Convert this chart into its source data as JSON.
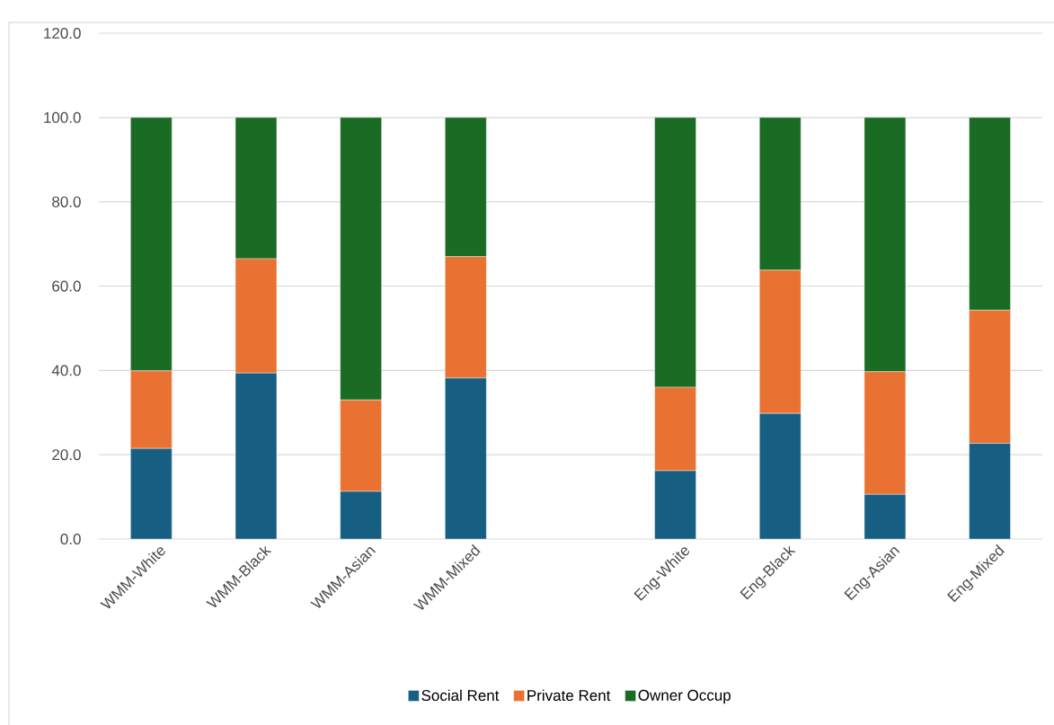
{
  "chart_data": {
    "type": "bar",
    "stacked": true,
    "categories": [
      "WMM-White",
      "WMM-Black",
      "WMM-Asian",
      "WMM-Mixed",
      null,
      "Eng-White",
      "Eng-Black",
      "Eng-Asian",
      "Eng-Mixed"
    ],
    "series": [
      {
        "name": "Social Rent",
        "color": "#175f82",
        "values": [
          21.5,
          39.4,
          11.3,
          38.2,
          null,
          16.2,
          29.8,
          10.6,
          22.7
        ]
      },
      {
        "name": "Private Rent",
        "color": "#e97132",
        "values": [
          18.4,
          27.1,
          21.7,
          28.8,
          null,
          19.8,
          34.0,
          29.1,
          31.6
        ]
      },
      {
        "name": "Owner Occup",
        "color": "#1a6b24",
        "values": [
          60.1,
          33.5,
          67.0,
          33.0,
          null,
          64.0,
          36.2,
          60.3,
          45.7
        ]
      }
    ],
    "ylim": [
      0,
      120
    ],
    "yticks": [
      {
        "value": 0,
        "label": "0.0"
      },
      {
        "value": 20,
        "label": "20.0"
      },
      {
        "value": 40,
        "label": "40.0"
      },
      {
        "value": 60,
        "label": "60.0"
      },
      {
        "value": 80,
        "label": "80.0"
      },
      {
        "value": 100,
        "label": "100.0"
      },
      {
        "value": 120,
        "label": "120.0"
      }
    ],
    "grid": "y",
    "legend": "bottom"
  }
}
